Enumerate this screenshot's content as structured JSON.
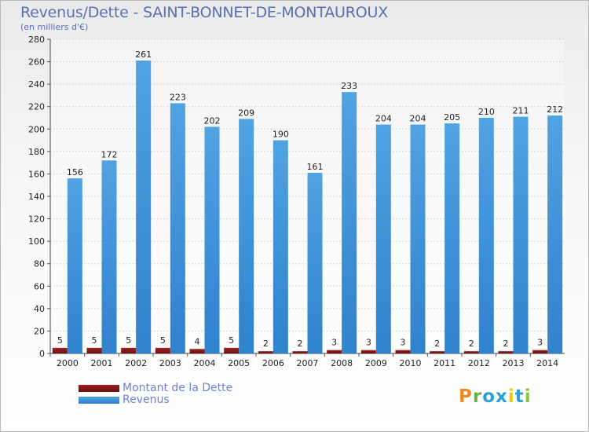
{
  "colors": {
    "debt": "#6b0d0d",
    "debt_light": "#a02222",
    "revenue": "#4fa3e3",
    "revenue_dark": "#2f82cc",
    "axis_text": "#222222",
    "grid": "#d6d6d6"
  },
  "chart_data": {
    "type": "bar",
    "title": "Revenus/Dette - SAINT-BONNET-DE-MONTAUROUX",
    "subtitle": "(en milliers d'€)",
    "ylim": [
      0,
      280
    ],
    "yticks": [
      0,
      20,
      40,
      60,
      80,
      100,
      120,
      140,
      160,
      180,
      200,
      220,
      240,
      260,
      280
    ],
    "categories": [
      "2000",
      "2001",
      "2002",
      "2003",
      "2004",
      "2005",
      "2006",
      "2007",
      "2008",
      "2009",
      "2010",
      "2011",
      "2012",
      "2013",
      "2014"
    ],
    "series": [
      {
        "name": "Montant de la Dette",
        "values": [
          5,
          5,
          5,
          5,
          4,
          5,
          2,
          2,
          3,
          3,
          3,
          2,
          2,
          2,
          3
        ]
      },
      {
        "name": "Revenus",
        "values": [
          156,
          172,
          261,
          223,
          202,
          209,
          190,
          161,
          233,
          204,
          204,
          205,
          210,
          211,
          212
        ]
      }
    ],
    "legend": {
      "position": "bottom-left"
    }
  },
  "logo": {
    "letters": [
      "P",
      "r",
      "o",
      "x",
      "i",
      "t",
      "i"
    ],
    "colors": [
      "#f08a24",
      "#6ab04c",
      "#2a9fd6",
      "#2a9fd6",
      "#f0c419",
      "#2a9fd6",
      "#8cc63f"
    ]
  }
}
